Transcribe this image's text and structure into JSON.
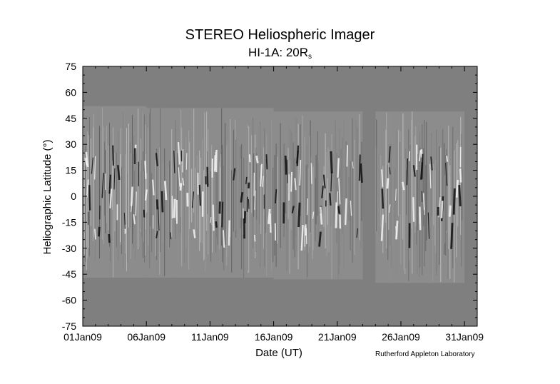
{
  "chart_data": {
    "type": "heatmap",
    "title": "STEREO Heliospheric Imager",
    "subtitle_main": "HI-1A: 20R",
    "subtitle_sub": "s",
    "xlabel": "Date (UT)",
    "ylabel": "Heliographic Latitude (°)",
    "x_ticks": [
      "01Jan09",
      "06Jan09",
      "11Jan09",
      "16Jan09",
      "21Jan09",
      "26Jan09",
      "31Jan09"
    ],
    "x_range_days": [
      0,
      31
    ],
    "y_ticks": [
      75,
      60,
      45,
      30,
      15,
      0,
      -15,
      -30,
      -45,
      -60,
      -75
    ],
    "ylim": [
      -75,
      75
    ],
    "background_color": "#7f7f7f",
    "data_segments": [
      {
        "start": "01Jan09",
        "end": "06Jan09",
        "lat_top": 52,
        "lat_bottom": -47
      },
      {
        "start": "06Jan09",
        "end": "16Jan09",
        "lat_top": 51,
        "lat_bottom": -47
      },
      {
        "start": "16Jan09",
        "end": "23Jan09",
        "lat_top": 49,
        "lat_bottom": -48
      },
      {
        "start": "24Jan09",
        "end": "31Jan09",
        "lat_top": 49,
        "lat_bottom": -50
      }
    ],
    "data_gap": {
      "start": "23Jan09",
      "end": "24Jan09"
    }
  },
  "credit": "Rutherford Appleton Laboratory"
}
